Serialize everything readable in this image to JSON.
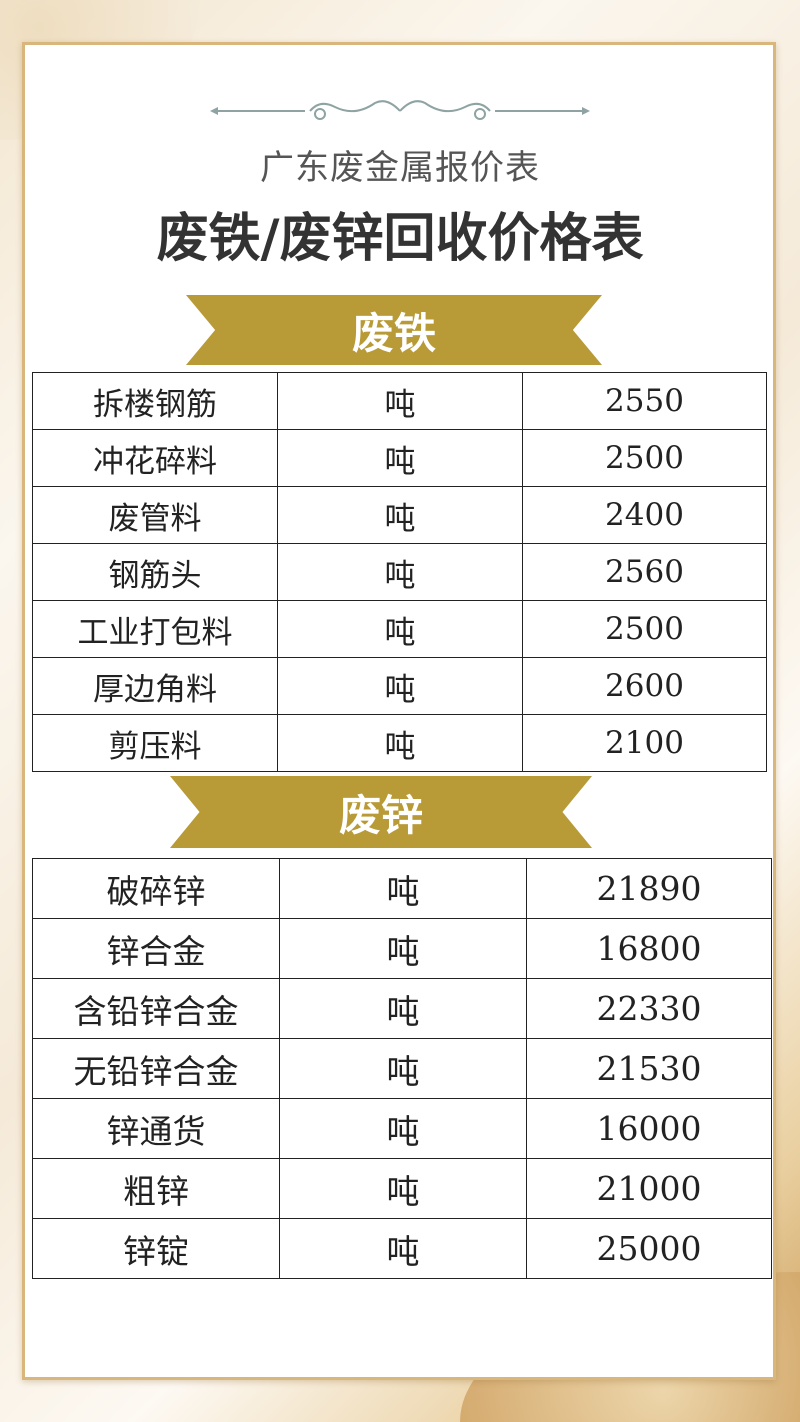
{
  "header": {
    "subtitle": "广东废金属报价表",
    "title": "废铁/废锌回收价格表"
  },
  "colors": {
    "banner": "#b89a37",
    "frame": "#d9b77c"
  },
  "sections": [
    {
      "name": "废铁",
      "rows": [
        {
          "item": "拆楼钢筋",
          "unit": "吨",
          "price": "2550"
        },
        {
          "item": "冲花碎料",
          "unit": "吨",
          "price": "2500"
        },
        {
          "item": "废管料",
          "unit": "吨",
          "price": "2400"
        },
        {
          "item": "钢筋头",
          "unit": "吨",
          "price": "2560"
        },
        {
          "item": "工业打包料",
          "unit": "吨",
          "price": "2500"
        },
        {
          "item": "厚边角料",
          "unit": "吨",
          "price": "2600"
        },
        {
          "item": "剪压料",
          "unit": "吨",
          "price": "2100"
        }
      ]
    },
    {
      "name": "废锌",
      "rows": [
        {
          "item": "破碎锌",
          "unit": "吨",
          "price": "21890"
        },
        {
          "item": "锌合金",
          "unit": "吨",
          "price": "16800"
        },
        {
          "item": "含铅锌合金",
          "unit": "吨",
          "price": "22330"
        },
        {
          "item": "无铅锌合金",
          "unit": "吨",
          "price": "21530"
        },
        {
          "item": "锌通货",
          "unit": "吨",
          "price": "16000"
        },
        {
          "item": "粗锌",
          "unit": "吨",
          "price": "21000"
        },
        {
          "item": "锌锭",
          "unit": "吨",
          "price": "25000"
        }
      ]
    }
  ]
}
